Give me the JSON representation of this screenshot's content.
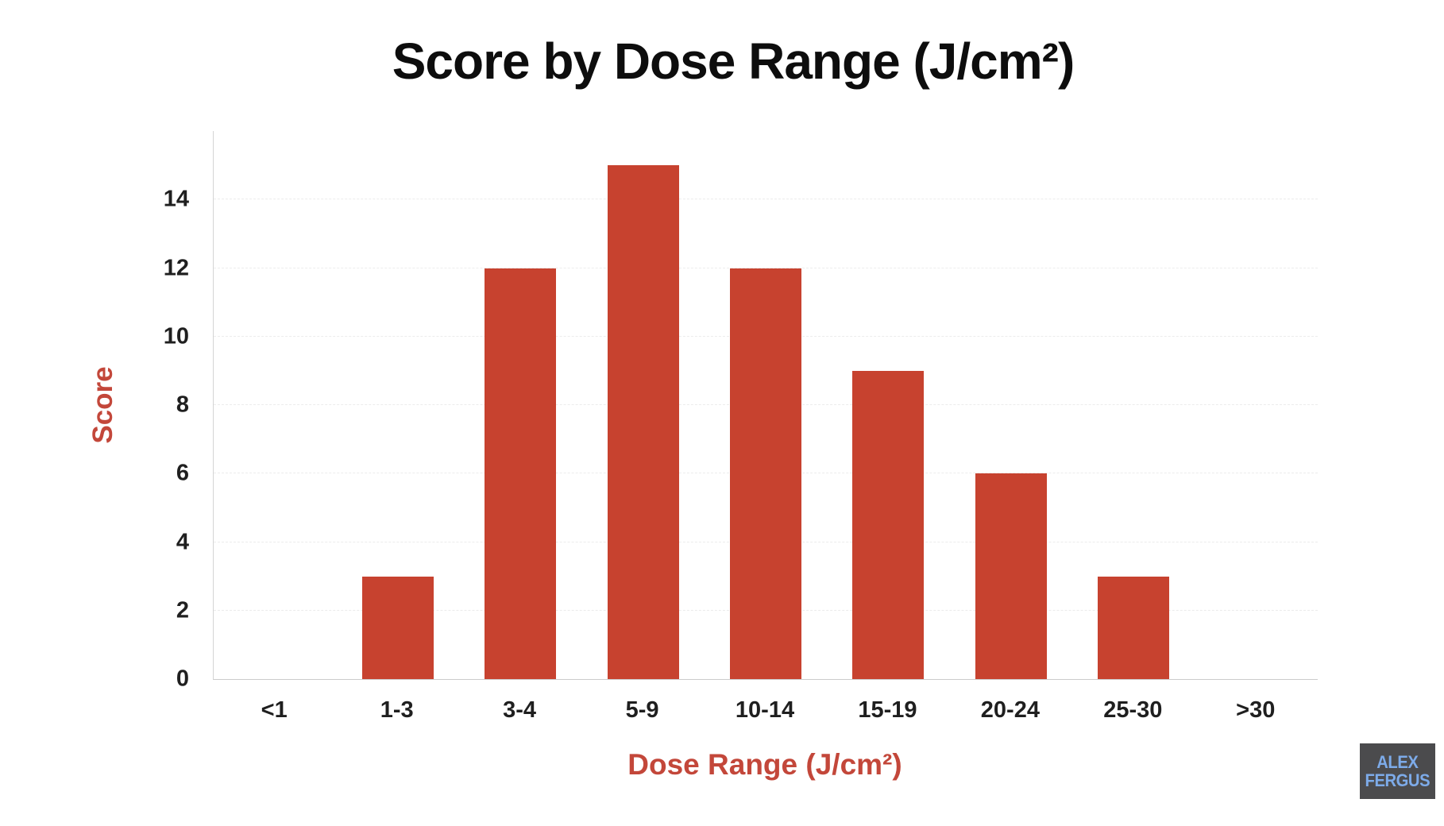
{
  "chart_data": {
    "type": "bar",
    "title": "Score by Dose Range (J/cm²)",
    "xlabel": "Dose Range (J/cm²)",
    "ylabel": "Score",
    "categories": [
      "<1",
      "1-3",
      "3-4",
      "5-9",
      "10-14",
      "15-19",
      "20-24",
      "25-30",
      ">30"
    ],
    "values": [
      0,
      3,
      12,
      15,
      12,
      9,
      6,
      3,
      0
    ],
    "yticks": [
      0,
      2,
      4,
      6,
      8,
      10,
      12,
      14
    ],
    "ylim": [
      0,
      16
    ],
    "grid": true,
    "legend": false,
    "bar_color": "#C7422F",
    "axis_label_color": "#C3473A",
    "tick_label_color": "#1f1f1f",
    "title_color": "#0d0d0d"
  },
  "watermark": {
    "line1": "ALEX",
    "line2": "FERGUS",
    "bg_color": "#4B4B4D",
    "text_color": "#7DABE9"
  }
}
